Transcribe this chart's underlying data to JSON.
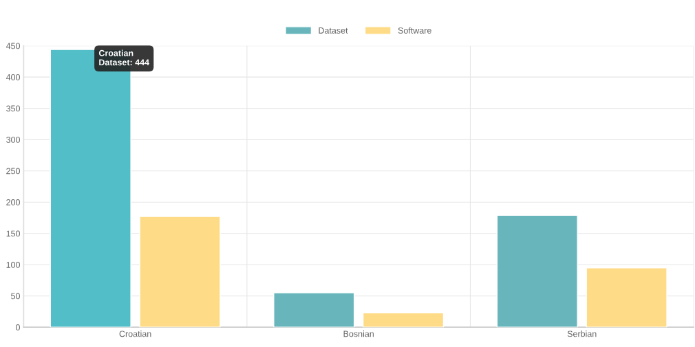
{
  "chart_data": {
    "type": "bar",
    "categories": [
      "Croatian",
      "Bosnian",
      "Serbian"
    ],
    "series": [
      {
        "name": "Dataset",
        "color": "#68b6bc",
        "colors": [
          "#52bec8",
          "#68b6bc",
          "#68b6bc"
        ],
        "values": [
          444,
          55,
          179
        ]
      },
      {
        "name": "Software",
        "color": "#fedb86",
        "values": [
          177,
          23,
          95
        ]
      }
    ],
    "ylim": [
      0,
      450
    ],
    "yticks": [
      0,
      50,
      100,
      150,
      200,
      250,
      300,
      350,
      400,
      450
    ],
    "grid": true,
    "legend": "top",
    "annotations": [
      "Croatian\nDataset: 444"
    ]
  }
}
